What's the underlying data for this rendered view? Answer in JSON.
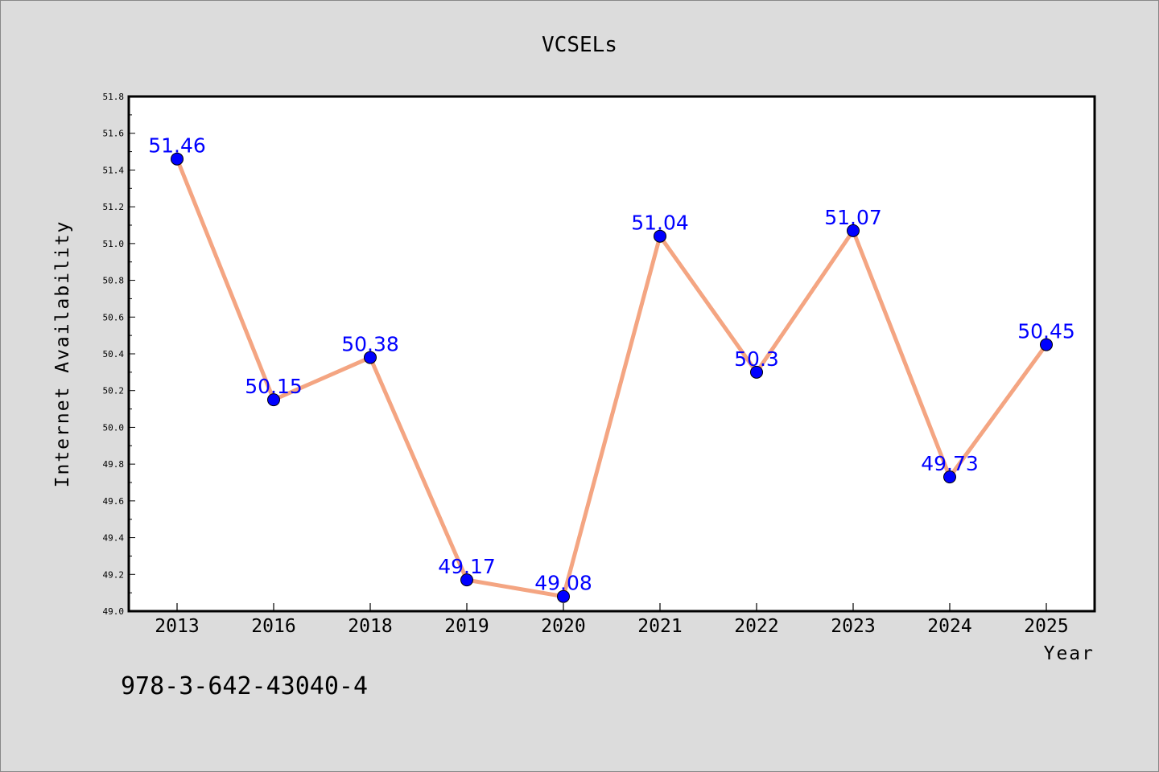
{
  "chart_data": {
    "type": "line",
    "title": "VCSELs",
    "xlabel": "Year",
    "ylabel": "Internet Availability",
    "categories": [
      "2013",
      "2016",
      "2018",
      "2019",
      "2020",
      "2021",
      "2022",
      "2023",
      "2024",
      "2025"
    ],
    "series": [
      {
        "values": [
          51.46,
          50.15,
          50.38,
          49.17,
          49.08,
          51.04,
          50.3,
          51.07,
          49.73,
          50.45
        ]
      }
    ],
    "data_labels": [
      "51.46",
      "50.15",
      "50.38",
      "49.17",
      "49.08",
      "51.04",
      "50.3",
      "51.07",
      "49.73",
      "50.45"
    ],
    "ylim": [
      49.0,
      51.8
    ],
    "yticks": [
      "49.0",
      "49.2",
      "49.4",
      "49.6",
      "49.8",
      "50.0",
      "50.2",
      "50.4",
      "50.6",
      "50.8",
      "51.0",
      "51.2",
      "51.4",
      "51.6",
      "51.8"
    ],
    "grid": false,
    "line_color": "#f4a582",
    "marker_color": "#0000ff",
    "label_color": "#0000ff"
  },
  "footer": {
    "text": "978-3-642-43040-4"
  }
}
